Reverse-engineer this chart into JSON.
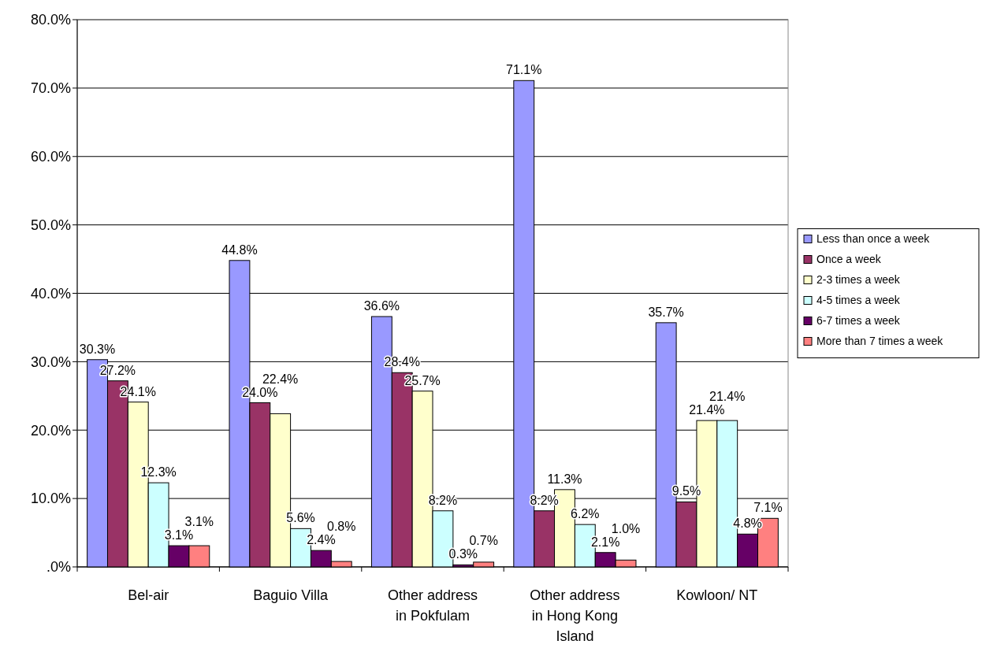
{
  "chart_data": {
    "type": "bar",
    "categories": [
      "Bel-air",
      "Baguio Villa",
      "Other address in Pokfulam",
      "Other address in Hong Kong Island",
      "Kowloon/ NT"
    ],
    "ylim": [
      0,
      80
    ],
    "yticks": [
      {
        "value": 0,
        "label": ".0%"
      },
      {
        "value": 10,
        "label": "10.0%"
      },
      {
        "value": 20,
        "label": "20.0%"
      },
      {
        "value": 30,
        "label": "30.0%"
      },
      {
        "value": 40,
        "label": "40.0%"
      },
      {
        "value": 50,
        "label": "50.0%"
      },
      {
        "value": 60,
        "label": "60.0%"
      },
      {
        "value": 70,
        "label": "70.0%"
      },
      {
        "value": 80,
        "label": "80.0%"
      }
    ],
    "grid": "y",
    "legend": "right",
    "series": [
      {
        "name": "Less than once a week",
        "color": "#9999ff",
        "values": [
          30.3,
          44.8,
          36.6,
          71.1,
          35.7
        ],
        "value_labels": [
          "30.3%",
          "44.8%",
          "36.6%",
          "71.1%",
          "35.7%"
        ]
      },
      {
        "name": "Once a week",
        "color": "#993366",
        "values": [
          27.2,
          24.0,
          28.4,
          8.2,
          9.5
        ],
        "value_labels": [
          "27.2%",
          "24.0%",
          "28.4%",
          "8.2%",
          "9.5%"
        ]
      },
      {
        "name": "2-3 times a week",
        "color": "#ffffcc",
        "values": [
          24.1,
          22.4,
          25.7,
          11.3,
          21.4
        ],
        "value_labels": [
          "24.1%",
          "22.4%",
          "25.7%",
          "11.3%",
          "21.4%"
        ]
      },
      {
        "name": "4-5 times a week",
        "color": "#ccffff",
        "values": [
          12.3,
          5.6,
          8.2,
          6.2,
          21.4
        ],
        "value_labels": [
          "12.3%",
          "5.6%",
          "8.2%",
          "6.2%",
          "21.4%"
        ]
      },
      {
        "name": "6-7 times a week",
        "color": "#660066",
        "values": [
          3.1,
          2.4,
          0.3,
          2.1,
          4.8
        ],
        "value_labels": [
          "3.1%",
          "2.4%",
          "0.3%",
          "2.1%",
          "4.8%"
        ]
      },
      {
        "name": "More than 7 times a week",
        "color": "#ff8080",
        "values": [
          3.1,
          0.8,
          0.7,
          1.0,
          7.1
        ],
        "value_labels": [
          "3.1%",
          "0.8%",
          "0.7%",
          "1.0%",
          "7.1%"
        ]
      }
    ]
  }
}
